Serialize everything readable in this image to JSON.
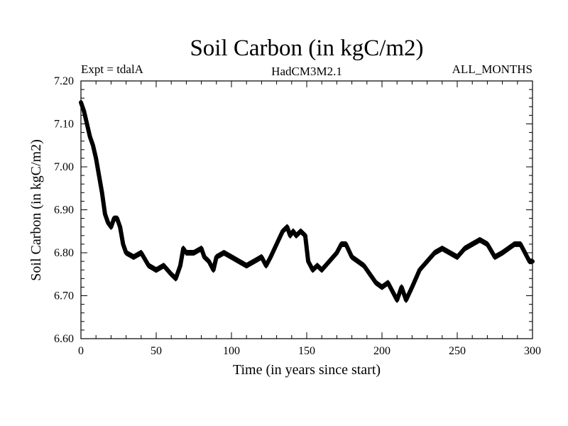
{
  "chart_data": {
    "type": "line",
    "title": "Soil Carbon (in kgC/m2)",
    "subtitle_left": "Expt = tdalA",
    "subtitle_center": "HadCM3M2.1",
    "subtitle_right": "ALL_MONTHS",
    "xlabel": "Time (in years since start)",
    "ylabel": "Soil Carbon (in kgC/m2)",
    "xlim": [
      0,
      300
    ],
    "ylim": [
      6.6,
      7.2
    ],
    "xticks": [
      0,
      50,
      100,
      150,
      200,
      250,
      300
    ],
    "xtick_labels": [
      "0",
      "50",
      "100",
      "150",
      "200",
      "250",
      "300"
    ],
    "yticks": [
      6.6,
      6.7,
      6.8,
      6.9,
      7.0,
      7.1,
      7.2
    ],
    "ytick_labels": [
      "6.60",
      "6.70",
      "6.80",
      "6.90",
      "7.00",
      "7.10",
      "7.20"
    ],
    "line_color": "#000000",
    "series": [
      {
        "name": "Soil Carbon",
        "x": [
          0,
          2,
          4,
          6,
          8,
          10,
          12,
          14,
          16,
          18,
          20,
          22,
          24,
          26,
          28,
          30,
          35,
          40,
          45,
          50,
          55,
          60,
          63,
          66,
          68,
          70,
          75,
          80,
          82,
          85,
          88,
          90,
          95,
          100,
          105,
          110,
          115,
          120,
          123,
          126,
          130,
          134,
          137,
          139,
          141,
          143,
          146,
          149,
          151,
          154,
          157,
          160,
          165,
          170,
          173,
          176,
          180,
          184,
          188,
          192,
          196,
          200,
          204,
          207,
          210,
          213,
          216,
          220,
          225,
          230,
          235,
          240,
          245,
          250,
          255,
          260,
          265,
          270,
          275,
          280,
          284,
          288,
          292,
          295,
          298,
          300
        ],
        "y": [
          7.15,
          7.13,
          7.1,
          7.07,
          7.05,
          7.02,
          6.98,
          6.94,
          6.89,
          6.87,
          6.86,
          6.88,
          6.88,
          6.86,
          6.82,
          6.8,
          6.79,
          6.8,
          6.77,
          6.76,
          6.77,
          6.75,
          6.74,
          6.77,
          6.81,
          6.8,
          6.8,
          6.81,
          6.79,
          6.78,
          6.76,
          6.79,
          6.8,
          6.79,
          6.78,
          6.77,
          6.78,
          6.79,
          6.77,
          6.79,
          6.82,
          6.85,
          6.86,
          6.84,
          6.85,
          6.84,
          6.85,
          6.84,
          6.78,
          6.76,
          6.77,
          6.76,
          6.78,
          6.8,
          6.82,
          6.82,
          6.79,
          6.78,
          6.77,
          6.75,
          6.73,
          6.72,
          6.73,
          6.71,
          6.69,
          6.72,
          6.69,
          6.72,
          6.76,
          6.78,
          6.8,
          6.81,
          6.8,
          6.79,
          6.81,
          6.82,
          6.83,
          6.82,
          6.79,
          6.8,
          6.81,
          6.82,
          6.82,
          6.8,
          6.78,
          6.78
        ]
      }
    ]
  }
}
